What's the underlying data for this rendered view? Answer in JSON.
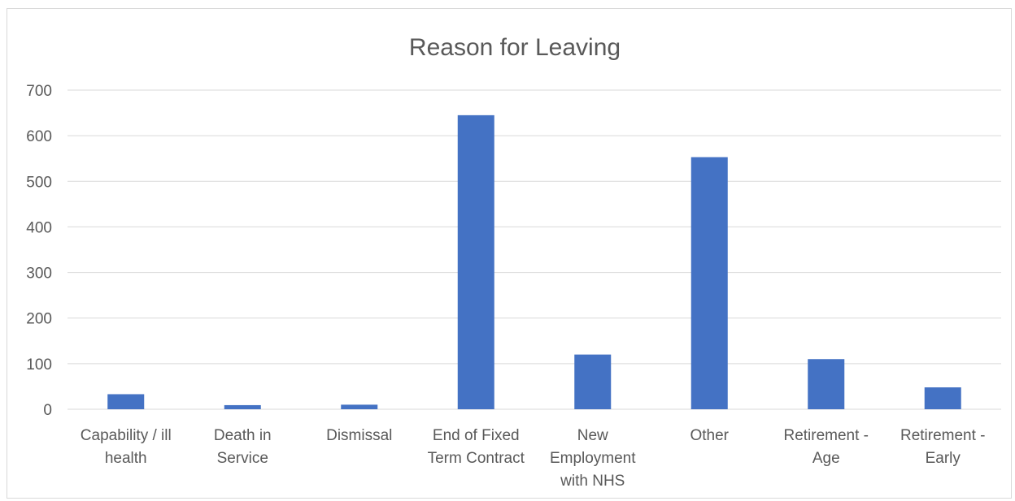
{
  "chart_data": {
    "type": "bar",
    "title": "Reason for Leaving",
    "xlabel": "",
    "ylabel": "",
    "ylim": [
      0,
      700
    ],
    "yticks": [
      0,
      100,
      200,
      300,
      400,
      500,
      600,
      700
    ],
    "grid": true,
    "legend": "none",
    "bar_color": "#4472c4",
    "categories": [
      [
        "Capability / ill",
        "health"
      ],
      [
        "Death in",
        "Service"
      ],
      [
        "Dismissal"
      ],
      [
        "End of Fixed",
        "Term Contract"
      ],
      [
        "New",
        "Employment",
        "with NHS"
      ],
      [
        "Other"
      ],
      [
        "Retirement -",
        "Age"
      ],
      [
        "Retirement -",
        "Early"
      ]
    ],
    "values": [
      33,
      9,
      10,
      645,
      120,
      553,
      110,
      48
    ]
  }
}
